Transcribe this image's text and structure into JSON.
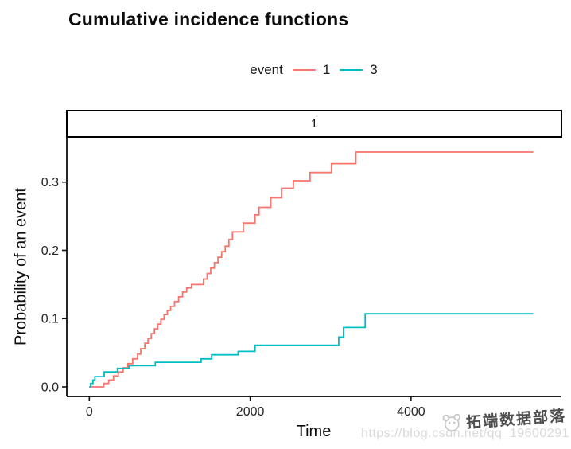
{
  "title": "Cumulative incidence functions",
  "legend": {
    "title": "event",
    "items": [
      {
        "label": "1",
        "color": "#F8766D"
      },
      {
        "label": "3",
        "color": "#00BFC4"
      }
    ]
  },
  "facet": {
    "label": "1"
  },
  "axes": {
    "x": {
      "label": "Time",
      "tick_labels": [
        "0",
        "2000",
        "4000"
      ]
    },
    "y": {
      "label": "Probability of an event",
      "tick_labels": [
        "0.0",
        "0.1",
        "0.2",
        "0.3"
      ]
    }
  },
  "watermark": {
    "brand": "拓端数据部落",
    "url": "https://blog.csdn.net/qq_19600291"
  },
  "chart_data": {
    "type": "line",
    "subtype": "step",
    "title": "Cumulative incidence functions",
    "xlabel": "Time",
    "ylabel": "Probability of an event",
    "facet_label": "1",
    "legend_title": "event",
    "legend_position": "top",
    "grid": false,
    "xlim": [
      -280,
      5860
    ],
    "ylim": [
      -0.014,
      0.365
    ],
    "x_ticks": [
      0,
      2000,
      4000
    ],
    "x_tick_labels": [
      "0",
      "2000",
      "4000"
    ],
    "y_ticks": [
      0,
      0.1,
      0.2,
      0.3
    ],
    "y_tick_labels": [
      "0.0",
      "0.1",
      "0.2",
      "0.3"
    ],
    "series": [
      {
        "name": "1",
        "color": "#F8766D",
        "points": [
          [
            0,
            0
          ],
          [
            180,
            0.005
          ],
          [
            240,
            0.01
          ],
          [
            300,
            0.016
          ],
          [
            360,
            0.022
          ],
          [
            420,
            0.028
          ],
          [
            480,
            0.034
          ],
          [
            540,
            0.041
          ],
          [
            600,
            0.048
          ],
          [
            640,
            0.056
          ],
          [
            690,
            0.064
          ],
          [
            730,
            0.071
          ],
          [
            770,
            0.078
          ],
          [
            810,
            0.085
          ],
          [
            850,
            0.092
          ],
          [
            890,
            0.099
          ],
          [
            930,
            0.106
          ],
          [
            970,
            0.112
          ],
          [
            1010,
            0.118
          ],
          [
            1060,
            0.125
          ],
          [
            1110,
            0.132
          ],
          [
            1160,
            0.139
          ],
          [
            1210,
            0.145
          ],
          [
            1270,
            0.15
          ],
          [
            1420,
            0.158
          ],
          [
            1465,
            0.166
          ],
          [
            1510,
            0.174
          ],
          [
            1555,
            0.182
          ],
          [
            1600,
            0.19
          ],
          [
            1645,
            0.198
          ],
          [
            1690,
            0.206
          ],
          [
            1735,
            0.216
          ],
          [
            1780,
            0.227
          ],
          [
            1914,
            0.24
          ],
          [
            2060,
            0.252
          ],
          [
            2110,
            0.263
          ],
          [
            2256,
            0.277
          ],
          [
            2390,
            0.291
          ],
          [
            2537,
            0.302
          ],
          [
            2745,
            0.314
          ],
          [
            3010,
            0.327
          ],
          [
            3314,
            0.344
          ],
          [
            5520,
            0.344
          ]
        ]
      },
      {
        "name": "3",
        "color": "#00BFC4",
        "points": [
          [
            0,
            0
          ],
          [
            15,
            0.005
          ],
          [
            45,
            0.01
          ],
          [
            70,
            0.015
          ],
          [
            185,
            0.022
          ],
          [
            350,
            0.027
          ],
          [
            495,
            0.031
          ],
          [
            820,
            0.036
          ],
          [
            1390,
            0.041
          ],
          [
            1520,
            0.047
          ],
          [
            1850,
            0.052
          ],
          [
            2060,
            0.061
          ],
          [
            3100,
            0.073
          ],
          [
            3160,
            0.087
          ],
          [
            3430,
            0.107
          ],
          [
            5520,
            0.107
          ]
        ]
      }
    ]
  }
}
